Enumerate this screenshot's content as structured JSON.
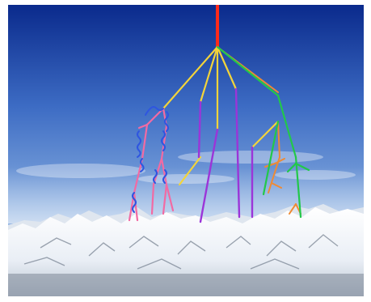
{
  "scene": {
    "subject": "cosmic-ray-air-shower-over-snowy-mountains",
    "colors": {
      "sky_top": "#0a2a8c",
      "sky_mid": "#4f7fcd",
      "sky_bottom": "#c6d8ee",
      "snow": "#f6f8fb",
      "rock": "#7c8796",
      "primary_track": "#ff2a1a",
      "hadron_track": "#f3d43a",
      "pion_track": "#9b35d8",
      "muon_track": "#22c84a",
      "kaon_track": "#f08a33",
      "electron_track": "#f26aa3",
      "photon_track": "#2f56e0"
    }
  }
}
